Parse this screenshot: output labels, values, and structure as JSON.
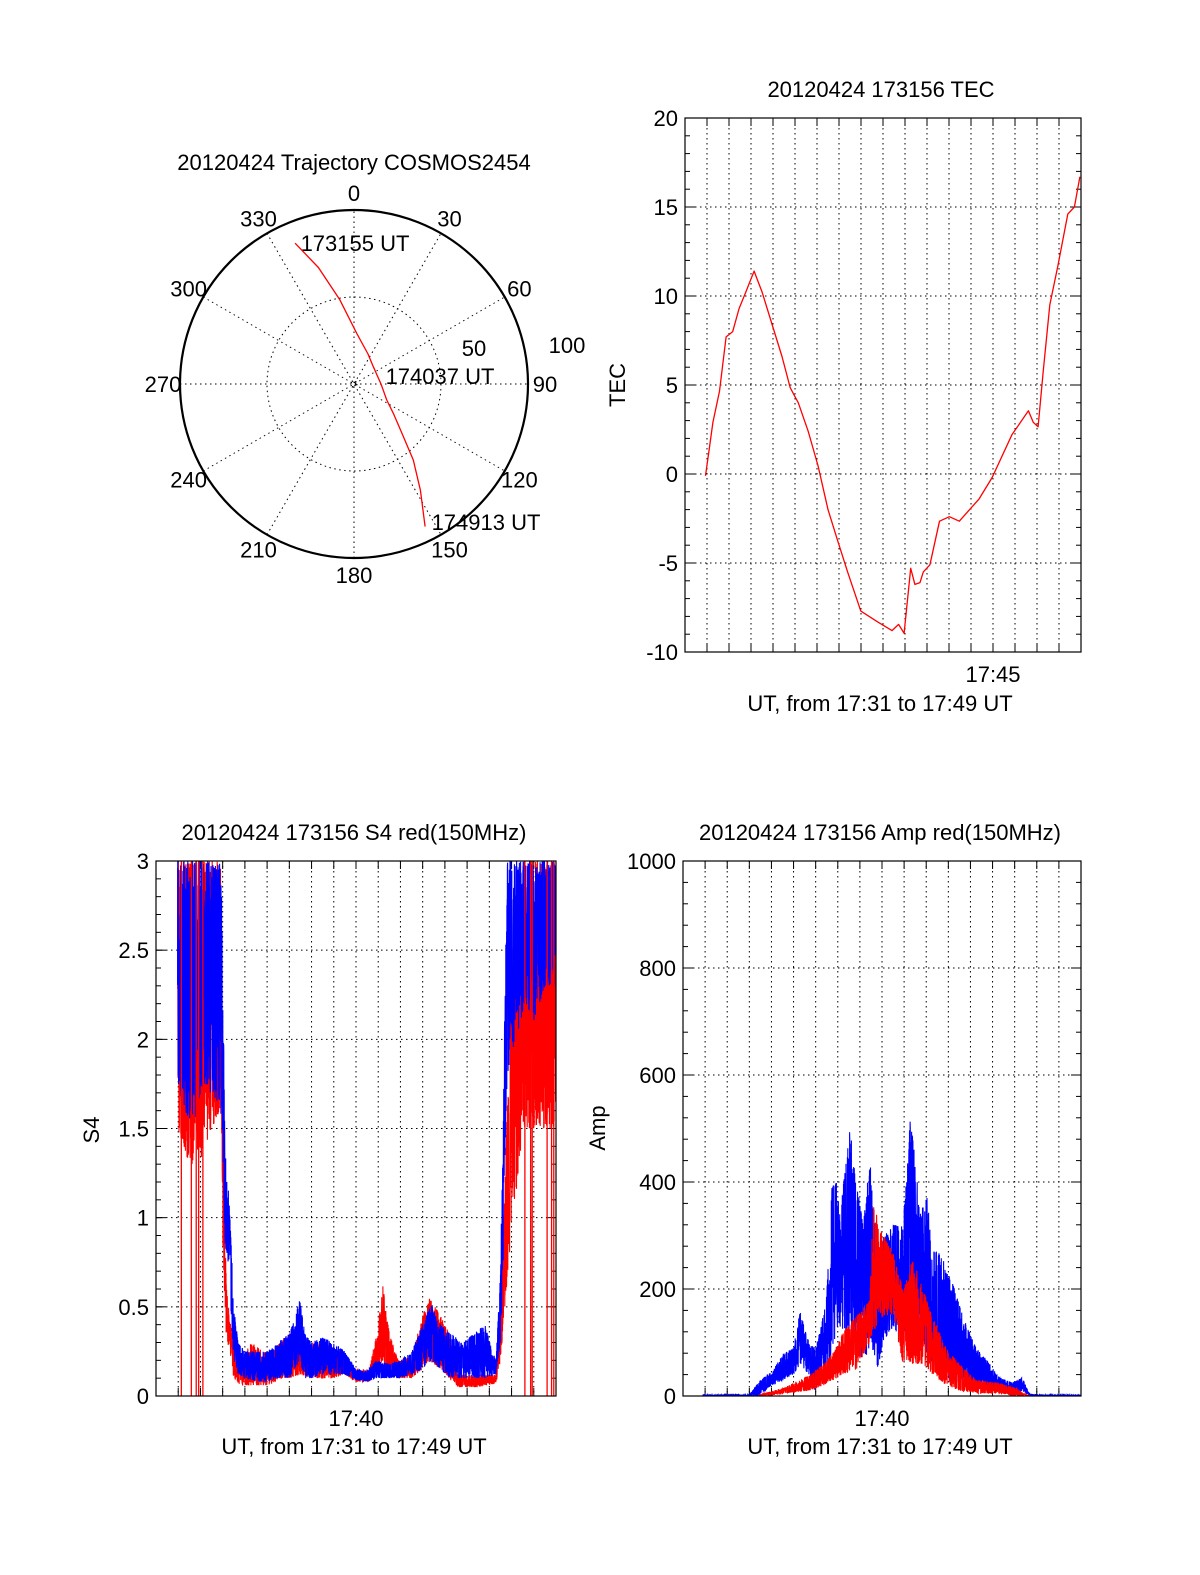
{
  "colors": {
    "red": "#ff0000",
    "blue": "#0000ff",
    "axis": "#000000"
  },
  "chart_data": [
    {
      "type": "polar",
      "title": "20120424 Trajectory COSMOS2454",
      "azimuth_labels": [
        "0",
        "30",
        "60",
        "90",
        "120",
        "150",
        "180",
        "210",
        "240",
        "270",
        "300",
        "330"
      ],
      "radial_labels": [
        "50",
        "100"
      ],
      "rlim": [
        0,
        100
      ],
      "grid": true,
      "series": [
        {
          "name": "trajectory",
          "color": "#ff0000",
          "points_az_r": [
            [
              337.3,
              87.7
            ],
            [
              343,
              70
            ],
            [
              350.5,
              49
            ],
            [
              3,
              29.2
            ],
            [
              25,
              19
            ],
            [
              48.1,
              14.9
            ],
            [
              90,
              15.5
            ],
            [
              116,
              20.9
            ],
            [
              126.7,
              28.2
            ],
            [
              136,
              40
            ],
            [
              142,
              55.4
            ],
            [
              148,
              72
            ],
            [
              153.5,
              91.6
            ]
          ]
        }
      ],
      "annotations": [
        "173155 UT",
        "174037 UT",
        "174913 UT"
      ]
    },
    {
      "type": "line",
      "title": "20120424 173156 TEC",
      "xlabel": "UT, from 17:31 to 17:49 UT",
      "ylabel": "TEC",
      "xlim": [
        31,
        49
      ],
      "ylim": [
        -10,
        20
      ],
      "x_tick_step": 1,
      "xtick_labels": [
        {
          "value": 45,
          "label": "17:45"
        }
      ],
      "yticks": [
        -10,
        -5,
        0,
        5,
        10,
        15,
        20
      ],
      "ytick_labels": [
        "-10",
        "-5",
        "0",
        "5",
        "10",
        "15",
        "20"
      ],
      "y_minor_step": 1,
      "grid": true,
      "series": [
        {
          "name": "TEC",
          "color": "#ff0000",
          "x": [
            31.93,
            32.12,
            32.27,
            32.57,
            32.87,
            33.17,
            33.46,
            33.76,
            34.14,
            34.51,
            34.96,
            35.41,
            35.78,
            36.15,
            36.6,
            37.05,
            37.5,
            37.94,
            38.39,
            38.99,
            39.74,
            40.41,
            40.71,
            40.96,
            41.26,
            41.45,
            41.68,
            41.83,
            42.13,
            42.57,
            43.02,
            43.47,
            44.37,
            44.96,
            45.86,
            46.61,
            46.83,
            47.05,
            47.28,
            47.58,
            47.95,
            48.4,
            48.7,
            48.95
          ],
          "y": [
            -0.1,
            1.55,
            2.9,
            4.65,
            7.7,
            8.0,
            9.3,
            10.2,
            11.4,
            10.2,
            8.4,
            6.6,
            4.85,
            4.0,
            2.4,
            0.45,
            -2.0,
            -3.75,
            -5.5,
            -7.7,
            -8.3,
            -8.8,
            -8.45,
            -8.95,
            -5.3,
            -6.2,
            -6.1,
            -5.5,
            -5.1,
            -2.65,
            -2.4,
            -2.65,
            -1.4,
            -0.2,
            2.2,
            3.55,
            2.9,
            2.65,
            5.75,
            9.5,
            11.7,
            14.6,
            15.0,
            16.7
          ]
        }
      ]
    },
    {
      "type": "line",
      "title": "20120424 173156 S4 red(150MHz)",
      "xlabel": "UT, from 17:31 to 17:49 UT",
      "ylabel": "S4",
      "xlim": [
        31,
        49
      ],
      "ylim": [
        0,
        3
      ],
      "x_tick_step": 1,
      "xtick_labels": [
        {
          "value": 40,
          "label": "17:40"
        }
      ],
      "yticks": [
        0,
        0.5,
        1,
        1.5,
        2,
        2.5,
        3
      ],
      "ytick_labels": [
        "0",
        "0.5",
        "1",
        "1.5",
        "2",
        "2.5",
        "3"
      ],
      "y_minor_step": 0.1,
      "grid": true,
      "series": [
        {
          "name": "red",
          "color": "#ff0000",
          "envelope_t_lo_hi": [
            [
              31.97,
              1.5,
              3
            ],
            [
              32.5,
              1.3,
              3
            ],
            [
              33.0,
              1.3,
              3
            ],
            [
              33.5,
              1.5,
              3
            ],
            [
              33.9,
              1.6,
              3
            ],
            [
              34.0,
              0.9,
              1.9
            ],
            [
              34.05,
              0.7,
              1.1
            ],
            [
              34.15,
              0.35,
              0.7
            ],
            [
              34.3,
              0.25,
              0.45
            ],
            [
              34.5,
              0.1,
              0.3
            ],
            [
              34.8,
              0.06,
              0.2
            ],
            [
              35.3,
              0.06,
              0.3
            ],
            [
              35.8,
              0.06,
              0.25
            ],
            [
              36.2,
              0.06,
              0.25
            ],
            [
              36.6,
              0.1,
              0.3
            ],
            [
              37.0,
              0.1,
              0.35
            ],
            [
              37.5,
              0.12,
              0.3
            ],
            [
              38.0,
              0.1,
              0.3
            ],
            [
              38.5,
              0.1,
              0.3
            ],
            [
              39.0,
              0.1,
              0.27
            ],
            [
              39.5,
              0.12,
              0.22
            ],
            [
              40.0,
              0.08,
              0.15
            ],
            [
              40.6,
              0.08,
              0.15
            ],
            [
              41.0,
              0.15,
              0.4
            ],
            [
              41.2,
              0.2,
              0.63
            ],
            [
              41.5,
              0.12,
              0.35
            ],
            [
              41.9,
              0.1,
              0.2
            ],
            [
              42.5,
              0.1,
              0.22
            ],
            [
              43.0,
              0.15,
              0.45
            ],
            [
              43.3,
              0.2,
              0.55
            ],
            [
              43.8,
              0.15,
              0.45
            ],
            [
              44.2,
              0.1,
              0.35
            ],
            [
              44.6,
              0.05,
              0.12
            ],
            [
              45.5,
              0.05,
              0.12
            ],
            [
              46.3,
              0.07,
              0.12
            ],
            [
              46.5,
              0.2,
              0.5
            ],
            [
              46.7,
              0.5,
              1.2
            ],
            [
              46.9,
              0.8,
              2.0
            ],
            [
              47.1,
              0.9,
              2.6
            ],
            [
              47.5,
              1.5,
              3
            ],
            [
              48.0,
              1.5,
              3
            ],
            [
              48.5,
              1.5,
              3
            ],
            [
              49.0,
              1.5,
              2.6
            ]
          ]
        },
        {
          "name": "blue",
          "color": "#0000ff",
          "envelope_t_lo_hi": [
            [
              31.97,
              1.75,
              3
            ],
            [
              32.3,
              1.6,
              3
            ],
            [
              32.7,
              1.5,
              3
            ],
            [
              33.0,
              1.7,
              3
            ],
            [
              33.3,
              1.75,
              3
            ],
            [
              33.6,
              1.65,
              3
            ],
            [
              33.9,
              1.6,
              3
            ],
            [
              34.0,
              1.3,
              2.6
            ],
            [
              34.1,
              0.85,
              1.4
            ],
            [
              34.25,
              0.75,
              1.2
            ],
            [
              34.4,
              0.4,
              0.8
            ],
            [
              34.5,
              0.2,
              0.5
            ],
            [
              34.7,
              0.12,
              0.3
            ],
            [
              35.0,
              0.1,
              0.25
            ],
            [
              35.5,
              0.08,
              0.25
            ],
            [
              36.0,
              0.08,
              0.25
            ],
            [
              36.5,
              0.1,
              0.3
            ],
            [
              37.0,
              0.1,
              0.35
            ],
            [
              37.3,
              0.15,
              0.45
            ],
            [
              37.45,
              0.2,
              0.56
            ],
            [
              37.7,
              0.1,
              0.35
            ],
            [
              38.0,
              0.1,
              0.3
            ],
            [
              38.5,
              0.12,
              0.33
            ],
            [
              39.0,
              0.12,
              0.3
            ],
            [
              39.5,
              0.12,
              0.25
            ],
            [
              40.0,
              0.09,
              0.15
            ],
            [
              40.5,
              0.08,
              0.14
            ],
            [
              40.9,
              0.1,
              0.2
            ],
            [
              41.5,
              0.1,
              0.18
            ],
            [
              42.0,
              0.1,
              0.2
            ],
            [
              42.5,
              0.12,
              0.25
            ],
            [
              43.0,
              0.15,
              0.4
            ],
            [
              43.4,
              0.2,
              0.52
            ],
            [
              43.8,
              0.15,
              0.4
            ],
            [
              44.3,
              0.1,
              0.35
            ],
            [
              44.8,
              0.1,
              0.3
            ],
            [
              45.3,
              0.1,
              0.35
            ],
            [
              45.8,
              0.1,
              0.4
            ],
            [
              46.3,
              0.12,
              0.2
            ],
            [
              46.5,
              0.3,
              0.7
            ],
            [
              46.6,
              0.6,
              1.4
            ],
            [
              46.7,
              1.3,
              2.2
            ],
            [
              46.8,
              1.8,
              3
            ],
            [
              47.2,
              2.0,
              3
            ],
            [
              47.6,
              2.2,
              3
            ],
            [
              48.0,
              2.1,
              3
            ],
            [
              48.5,
              2.3,
              3
            ],
            [
              49.0,
              2.3,
              3
            ]
          ]
        },
        {
          "name": "red-spikes",
          "color": "#ff0000",
          "spikes_t": [
            32.14,
            32.59,
            32.81,
            32.92,
            33.11,
            47.6,
            47.86,
            47.93,
            48.6,
            48.8,
            48.9
          ],
          "spike_range": [
            0,
            3
          ]
        }
      ]
    },
    {
      "type": "line",
      "title": "20120424 173156 Amp red(150MHz)",
      "xlabel": "UT, from 17:31 to 17:49 UT",
      "ylabel": "Amp",
      "xlim": [
        31,
        49
      ],
      "ylim": [
        0,
        1000
      ],
      "x_tick_step": 1,
      "xtick_labels": [
        {
          "value": 40,
          "label": "17:40"
        }
      ],
      "yticks": [
        0,
        200,
        400,
        600,
        800,
        1000
      ],
      "ytick_labels": [
        "0",
        "200",
        "400",
        "600",
        "800",
        "1000"
      ],
      "y_minor_step": 40,
      "grid": true,
      "series": [
        {
          "name": "blue",
          "color": "#0000ff",
          "envelope_t_lo_hi": [
            [
              31.9,
              0,
              2
            ],
            [
              34.0,
              0,
              3
            ],
            [
              34.5,
              0,
              30
            ],
            [
              35.0,
              20,
              45
            ],
            [
              35.55,
              30,
              80
            ],
            [
              36.0,
              40,
              90
            ],
            [
              36.3,
              60,
              160
            ],
            [
              36.6,
              40,
              110
            ],
            [
              36.9,
              10,
              90
            ],
            [
              37.2,
              20,
              120
            ],
            [
              37.5,
              40,
              190
            ],
            [
              37.8,
              100,
              450
            ],
            [
              38.1,
              130,
              340
            ],
            [
              38.55,
              110,
              500
            ],
            [
              38.85,
              90,
              400
            ],
            [
              39.15,
              60,
              320
            ],
            [
              39.5,
              100,
              460
            ],
            [
              39.8,
              50,
              200
            ],
            [
              40.05,
              100,
              300
            ],
            [
              40.5,
              130,
              320
            ],
            [
              40.95,
              100,
              320
            ],
            [
              41.3,
              180,
              530
            ],
            [
              41.7,
              140,
              350
            ],
            [
              42.0,
              80,
              385
            ],
            [
              42.3,
              60,
              270
            ],
            [
              42.65,
              40,
              270
            ],
            [
              43.2,
              30,
              210
            ],
            [
              43.65,
              20,
              150
            ],
            [
              44.25,
              15,
              90
            ],
            [
              44.7,
              10,
              70
            ],
            [
              45.3,
              10,
              35
            ],
            [
              45.9,
              0,
              25
            ],
            [
              46.35,
              10,
              35
            ],
            [
              46.65,
              0,
              5
            ],
            [
              47.0,
              0,
              2
            ],
            [
              49.0,
              0,
              2
            ]
          ]
        },
        {
          "name": "red",
          "color": "#ff0000",
          "envelope_t_lo_hi": [
            [
              34.4,
              0,
              0
            ],
            [
              34.65,
              0,
              5
            ],
            [
              35.55,
              5,
              15
            ],
            [
              36.75,
              10,
              40
            ],
            [
              37.35,
              20,
              60
            ],
            [
              37.8,
              30,
              80
            ],
            [
              38.25,
              40,
              120
            ],
            [
              38.85,
              50,
              150
            ],
            [
              39.45,
              100,
              180
            ],
            [
              39.6,
              120,
              360
            ],
            [
              40.05,
              150,
              300
            ],
            [
              40.5,
              150,
              270
            ],
            [
              40.95,
              60,
              200
            ],
            [
              41.4,
              60,
              260
            ],
            [
              41.85,
              60,
              200
            ],
            [
              42.3,
              40,
              150
            ],
            [
              42.9,
              20,
              90
            ],
            [
              43.5,
              10,
              60
            ],
            [
              44.25,
              5,
              30
            ],
            [
              45.3,
              5,
              25
            ],
            [
              46.05,
              0,
              15
            ],
            [
              46.5,
              0,
              3
            ],
            [
              46.7,
              0,
              0
            ]
          ]
        }
      ]
    }
  ]
}
